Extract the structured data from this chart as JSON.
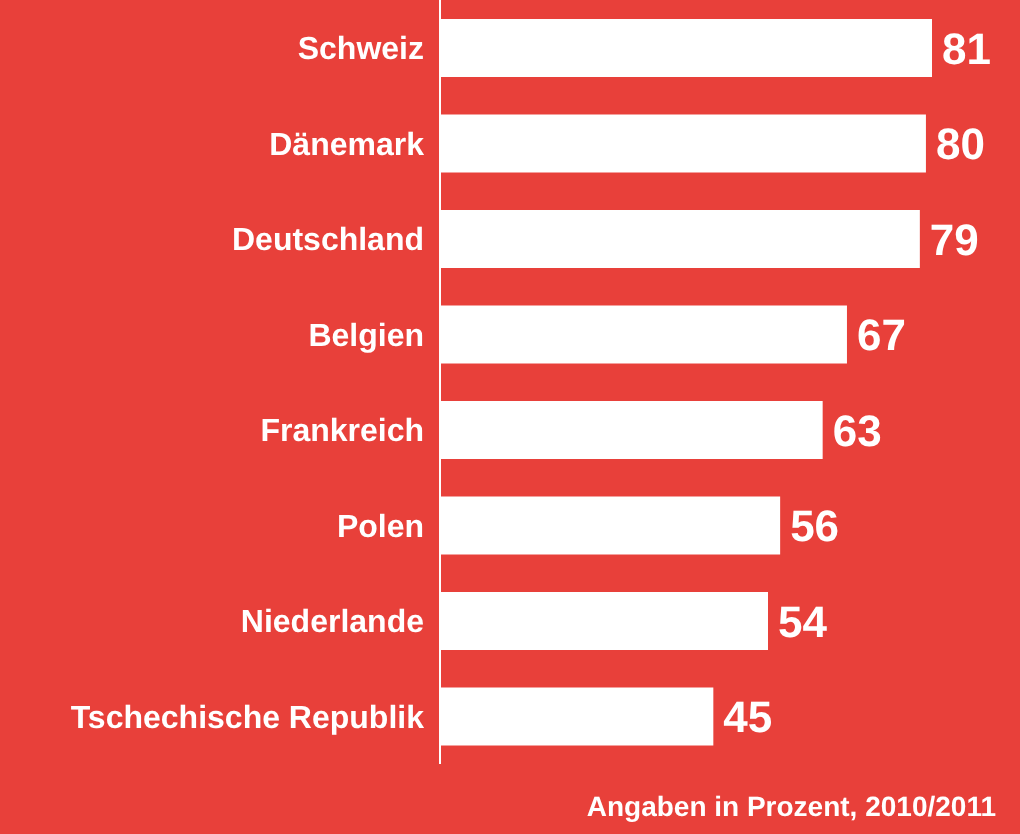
{
  "chart_data": {
    "type": "bar",
    "orientation": "horizontal",
    "data_labels": true,
    "categories": [
      "Schweiz",
      "Dänemark",
      "Deutschland",
      "Belgien",
      "Frankreich",
      "Polen",
      "Niederlande",
      "Tschechische Republik"
    ],
    "values": [
      81,
      80,
      79,
      67,
      63,
      56,
      54,
      45
    ],
    "color": "#ffffff",
    "annotations": [
      "Angaben in Prozent, 2010/2011"
    ]
  }
}
